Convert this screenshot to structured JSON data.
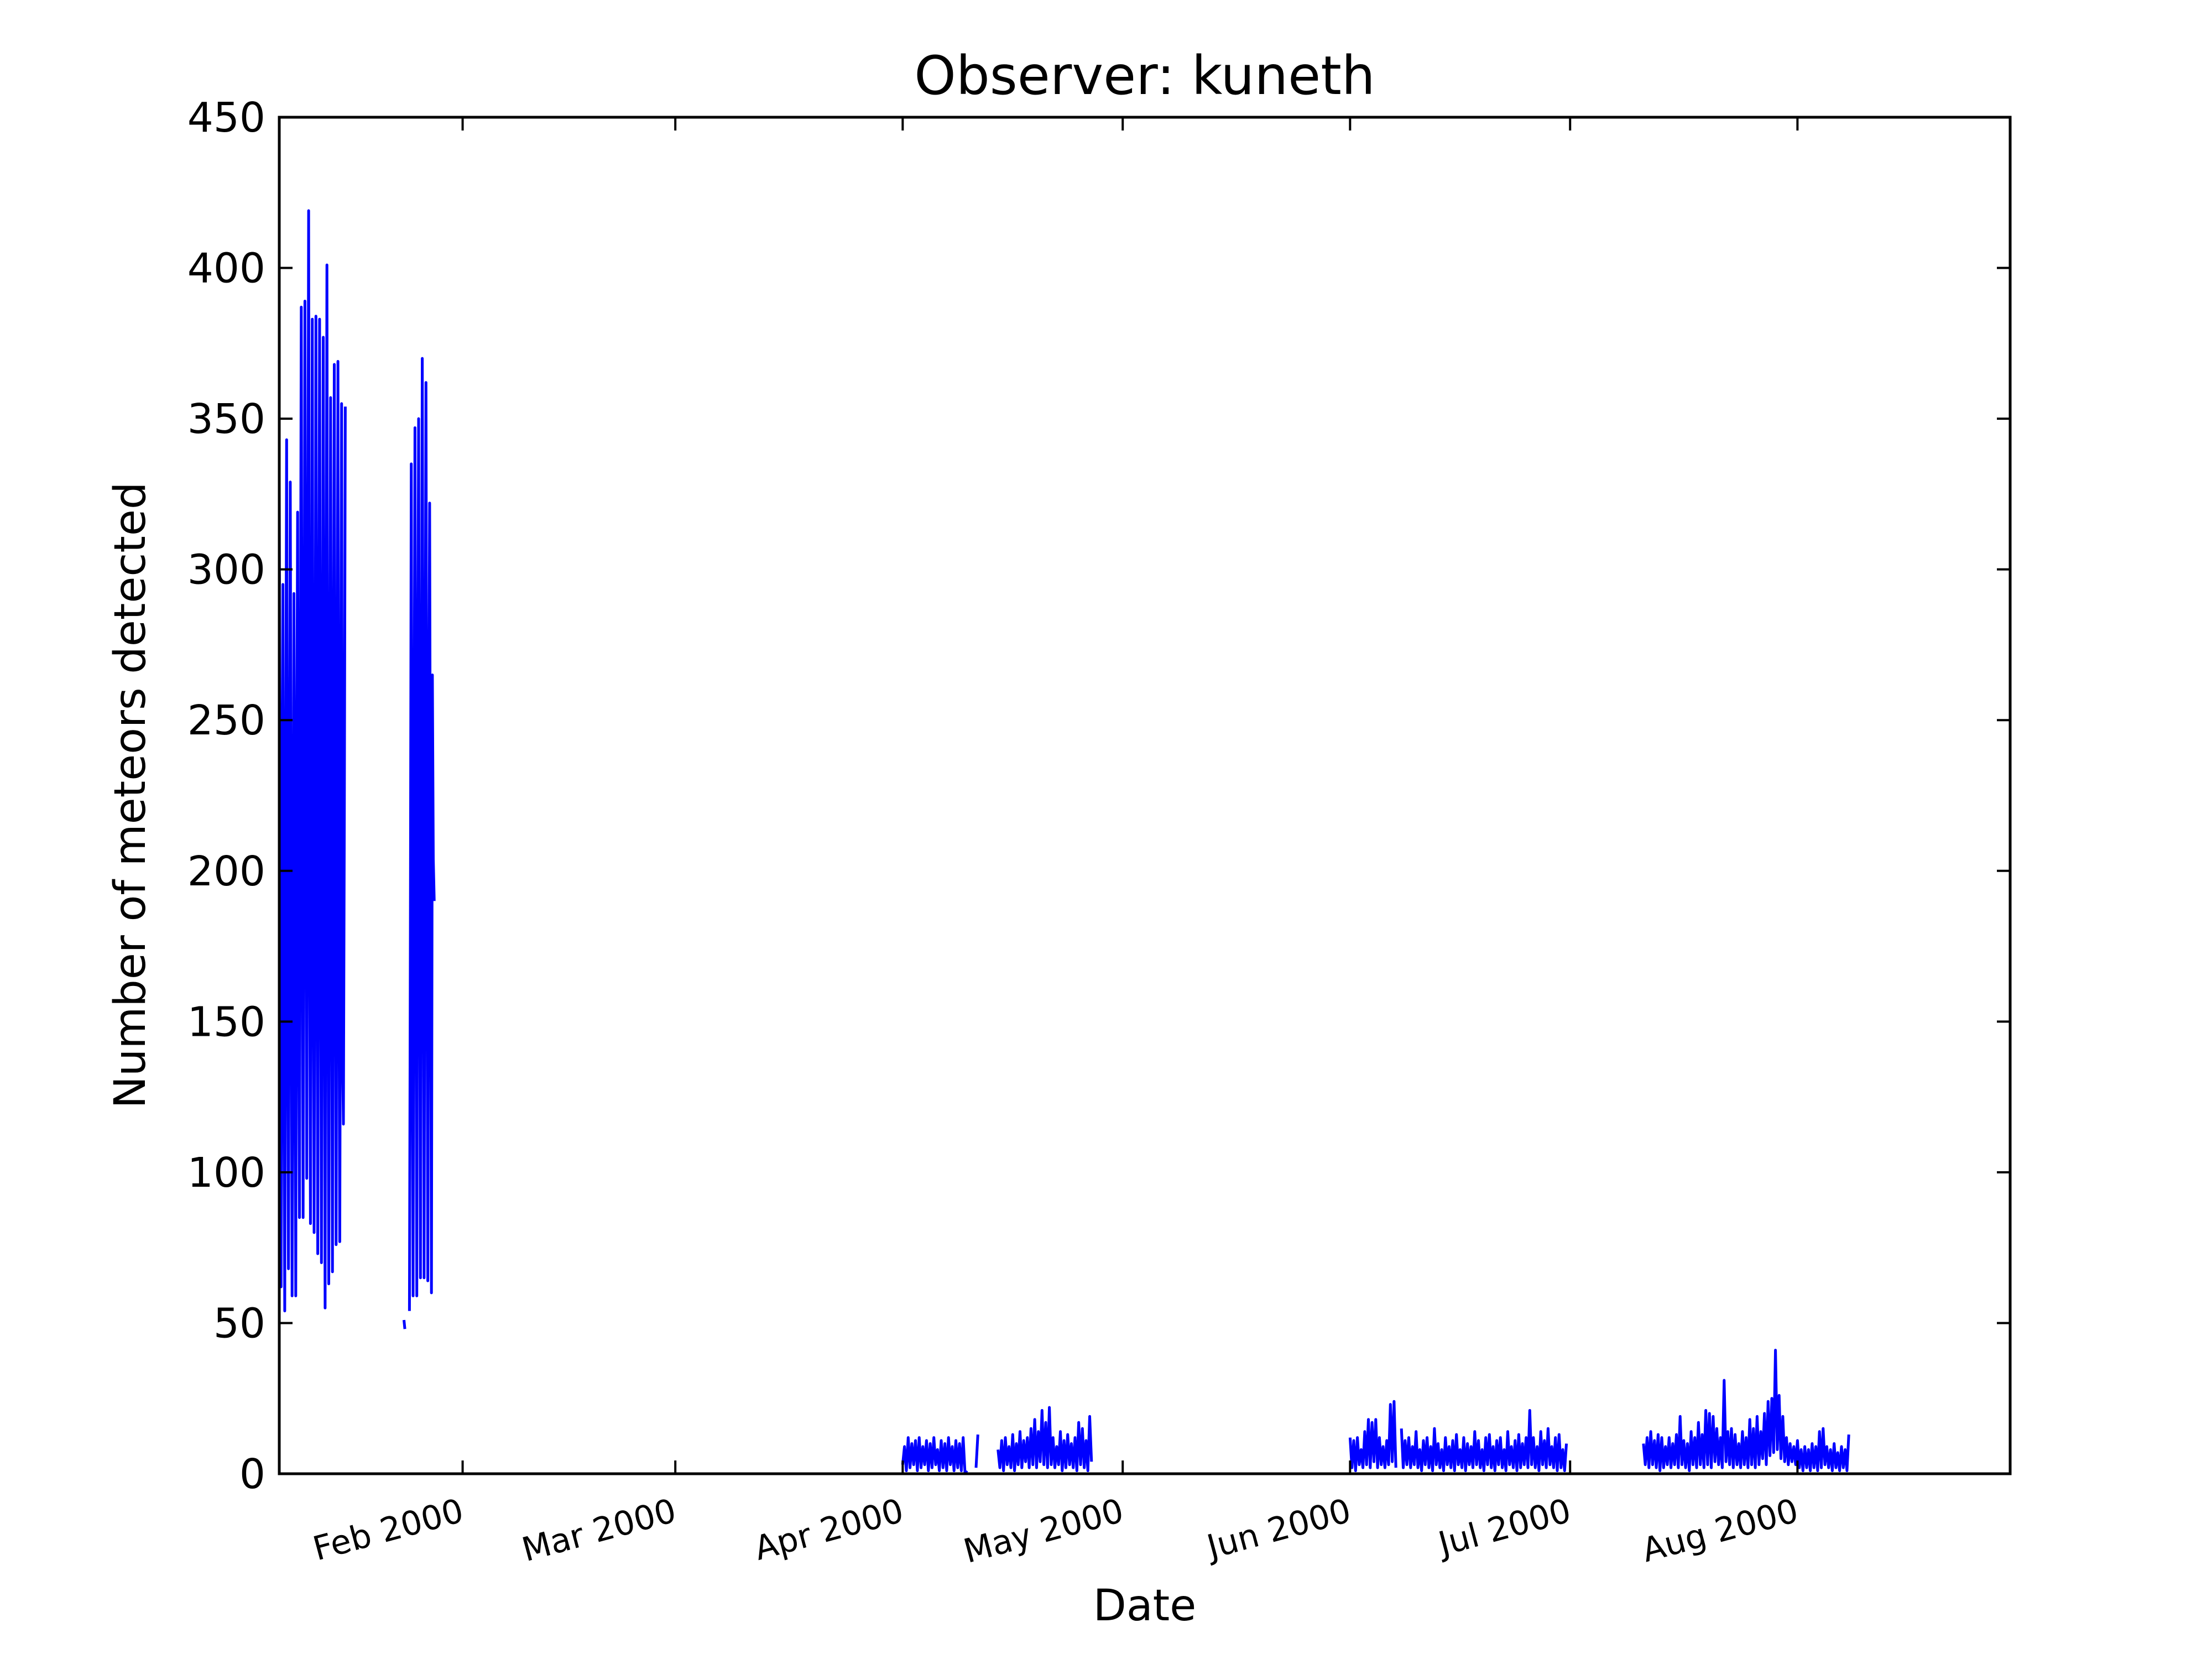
{
  "chart_data": {
    "type": "line",
    "title": "Observer: kuneth",
    "xlabel": "Date",
    "ylabel": "Number of meteors detected",
    "x_range": [
      "2000-01-07",
      "2000-08-30"
    ],
    "ylim": [
      0,
      450
    ],
    "yticks": [
      0,
      50,
      100,
      150,
      200,
      250,
      300,
      350,
      400,
      450
    ],
    "xticks": [
      {
        "date": "2000-02-01",
        "label": "Feb 2000"
      },
      {
        "date": "2000-03-01",
        "label": "Mar 2000"
      },
      {
        "date": "2000-04-01",
        "label": "Apr 2000"
      },
      {
        "date": "2000-05-01",
        "label": "May 2000"
      },
      {
        "date": "2000-06-01",
        "label": "Jun 2000"
      },
      {
        "date": "2000-07-01",
        "label": "Jul 2000"
      },
      {
        "date": "2000-08-01",
        "label": "Aug 2000"
      }
    ],
    "grid": false,
    "series": [
      {
        "color": "#0000ff",
        "segments": [
          {
            "start": "2000-01-07",
            "step_hours": 3,
            "values": [
              331,
              180,
              62,
              210,
              295,
              140,
              54,
              220,
              343,
              160,
              68,
              200,
              329,
              190,
              59,
              160,
              292,
              170,
              59,
              230,
              319,
              160,
              85,
              250,
              387,
              210,
              85,
              240,
              389,
              230,
              98,
              270,
              419,
              200,
              83,
              230,
              383,
              190,
              80,
              220,
              384,
              210,
              73,
              240,
              383,
              200,
              70,
              230,
              377,
              190,
              55,
              250,
              401,
              180,
              63,
              220,
              357,
              200,
              67,
              240,
              368,
              190,
              76,
              220,
              369,
              180,
              77,
              210,
              355,
              140,
              116,
              220,
              354
            ]
          },
          {
            "start": "2000-01-24T18:00",
            "step_hours": 3,
            "values": [
              54,
              180,
              335,
              170,
              59,
              230,
              347,
              190,
              59,
              250,
              350,
              200,
              65,
              230,
              370,
              210,
              65,
              240,
              362,
              200,
              64,
              230,
              322,
              190,
              60,
              265,
              204,
              190
            ]
          },
          {
            "start": "2000-01-24T00:00",
            "step_hours": 3,
            "values": [
              51,
              48
            ]
          },
          {
            "start": "2000-04-01",
            "step_hours": 6,
            "values": [
              3,
              9,
              1,
              12,
              2,
              10,
              3,
              11,
              1,
              12,
              2,
              9,
              3,
              11,
              1,
              10,
              2,
              12,
              3,
              8,
              1,
              11,
              2,
              10,
              1,
              12,
              3,
              9,
              1,
              11,
              2,
              10,
              1,
              12,
              0,
              1
            ]
          },
          {
            "start": "2000-04-11",
            "step_hours": 6,
            "values": [
              2,
              13
            ]
          },
          {
            "start": "2000-04-14",
            "step_hours": 6,
            "values": [
              8,
              2,
              11,
              1,
              12,
              3,
              9,
              2,
              13,
              1,
              10,
              3,
              14,
              2,
              11,
              4,
              12,
              2,
              15,
              3,
              18,
              2,
              14,
              4,
              21,
              3,
              17,
              2,
              22,
              3,
              12,
              2,
              9,
              3,
              14,
              1,
              11,
              2,
              13,
              3,
              10,
              2,
              12,
              1,
              17,
              3,
              15,
              2,
              11,
              1,
              19,
              4
            ]
          },
          {
            "start": "2000-06-01",
            "step_hours": 6,
            "values": [
              12,
              2,
              11,
              1,
              12,
              3,
              8,
              2,
              14,
              3,
              18,
              2,
              17,
              4,
              18,
              2,
              12,
              3,
              9,
              2,
              11,
              3,
              23,
              4,
              24,
              2
            ]
          },
          {
            "start": "2000-06-08",
            "step_hours": 6,
            "values": [
              15,
              2,
              11,
              3,
              12,
              2,
              9,
              3,
              14,
              2,
              8,
              1,
              11,
              3,
              12,
              2,
              9,
              1,
              15,
              3,
              10,
              2,
              8,
              1,
              12,
              3,
              9,
              2,
              11,
              1,
              13,
              3,
              8,
              2,
              12,
              1,
              10,
              3,
              9,
              2,
              14,
              3,
              11,
              2,
              8,
              1,
              12,
              3,
              13,
              2,
              9,
              1,
              11,
              3,
              12,
              2,
              8,
              1,
              14,
              3,
              9,
              2,
              11,
              1,
              13,
              2,
              10,
              3,
              12,
              2,
              21,
              3,
              12,
              2,
              9,
              1,
              14,
              3,
              11,
              2,
              15,
              3,
              9,
              2,
              12,
              1,
              13,
              2,
              8,
              1,
              10
            ]
          },
          {
            "start": "2000-07-11",
            "step_hours": 6,
            "values": [
              10,
              3,
              12,
              2,
              14,
              3,
              11,
              2,
              13,
              1,
              12,
              2,
              9,
              3,
              12,
              2,
              10,
              3,
              13,
              2,
              19,
              3,
              11,
              2,
              10,
              1,
              14,
              3,
              12,
              2,
              17,
              3,
              13,
              2,
              21,
              3,
              20,
              2,
              19,
              4,
              15,
              3,
              12,
              2,
              31,
              4,
              14,
              3,
              15,
              2,
              13,
              3,
              10,
              2,
              14,
              3,
              12,
              2,
              18,
              3,
              15,
              2,
              19,
              3,
              14,
              5,
              20,
              3,
              24,
              6,
              25,
              7,
              41,
              8,
              26,
              5,
              19,
              4,
              12,
              3,
              10,
              4,
              9,
              3,
              11,
              2,
              8,
              1,
              9,
              2,
              8,
              1,
              10,
              2,
              9,
              1,
              14,
              2,
              15,
              3,
              9,
              2,
              8,
              1,
              10,
              2,
              7,
              1,
              9,
              2,
              8,
              1,
              13
            ]
          }
        ]
      }
    ]
  }
}
